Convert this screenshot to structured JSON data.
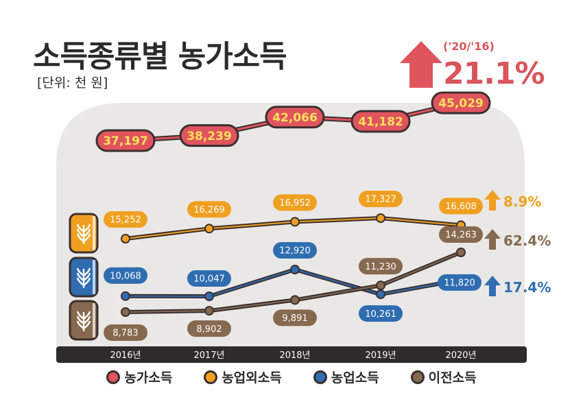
{
  "title": "소득종류별 농가소득",
  "unit": "[단위: 천 원]",
  "headline": {
    "period": "('20/'16)",
    "change": "21.1%"
  },
  "chart_data": {
    "type": "line",
    "categories": [
      "2016년",
      "2017년",
      "2018년",
      "2019년",
      "2020년"
    ],
    "series": [
      {
        "name": "농가소득",
        "values": [
          37197,
          38239,
          42066,
          41182,
          45029
        ],
        "labels": [
          "37,197",
          "38,239",
          "42,066",
          "41,182",
          "45,029"
        ],
        "color": "#e0545e"
      },
      {
        "name": "농업외소득",
        "values": [
          15252,
          16269,
          16952,
          17327,
          16608
        ],
        "labels": [
          "15,252",
          "16,269",
          "16,952",
          "17,327",
          "16,608"
        ],
        "color": "#f0a020",
        "change": "8.9%"
      },
      {
        "name": "농업소득",
        "values": [
          10068,
          10047,
          12920,
          10261,
          11820
        ],
        "labels": [
          "10,068",
          "10,047",
          "12,920",
          "10,261",
          "11,820"
        ],
        "color": "#2f6db0",
        "change": "17.4%"
      },
      {
        "name": "이전소득",
        "values": [
          8783,
          8902,
          9891,
          11230,
          14263
        ],
        "labels": [
          "8,783",
          "8,902",
          "9,891",
          "11,230",
          "14,263"
        ],
        "color": "#86694e",
        "change": "62.4%"
      }
    ]
  },
  "colors": {
    "bar": "#2d2b2b",
    "panel": "#e9e8e6",
    "outline": "#3a2f2f",
    "label_text_light": "#ffffff",
    "label_text_yellow": "#ffe15a"
  },
  "icons": [
    "wheat-bag-orange-icon",
    "wheat-bag-blue-icon",
    "wheat-bag-brown-icon",
    "up-arrow-icon"
  ]
}
